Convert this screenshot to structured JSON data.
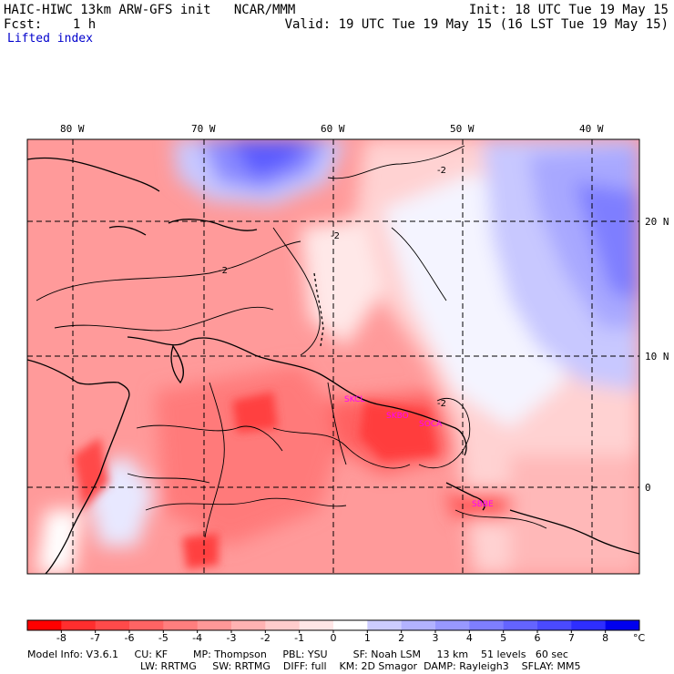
{
  "header": {
    "title": "HAIC-HIWC 13km ARW-GFS init   NCAR/MMM",
    "forecast": "Fcst:    1 h",
    "field": "Lifted index",
    "init": "Init: 18 UTC Tue 19 May 15",
    "valid": "Valid: 19 UTC Tue 19 May 15 (16 LST Tue 19 May 15)"
  },
  "map": {
    "lon_labels": [
      "80 W",
      "70 W",
      "60 W",
      "50 W",
      "40 W"
    ],
    "lat_labels": [
      "20 N",
      "10 N",
      "0"
    ],
    "contour_label": "-2",
    "stations": [
      "SKCL",
      "SKBO",
      "SOCA",
      "SBBE"
    ]
  },
  "colorbar": {
    "ticks": [
      "-8",
      "-7",
      "-6",
      "-5",
      "-4",
      "-3",
      "-2",
      "-1",
      "0",
      "1",
      "2",
      "3",
      "4",
      "5",
      "6",
      "7",
      "8"
    ],
    "unit": "°C",
    "colors": [
      "#ff0000",
      "#ff2e2e",
      "#ff4a4a",
      "#ff6464",
      "#ff7e7e",
      "#ff9898",
      "#ffb2b2",
      "#ffcccc",
      "#ffe6e6",
      "#ffffff",
      "#ccccff",
      "#b2b2ff",
      "#9898ff",
      "#7e7eff",
      "#6464ff",
      "#4a4aff",
      "#2e2eff",
      "#0000ee"
    ]
  },
  "footer": {
    "line1": "Model Info: V3.6.1     CU: KF        MP: Thompson     PBL: YSU        SF: Noah LSM     13 km    51 levels   60 sec",
    "line2": "LW: RRTMG     SW: RRTMG    DIFF: full    KM: 2D Smagor  DAMP: Rayleigh3    SFLAY: MM5"
  }
}
